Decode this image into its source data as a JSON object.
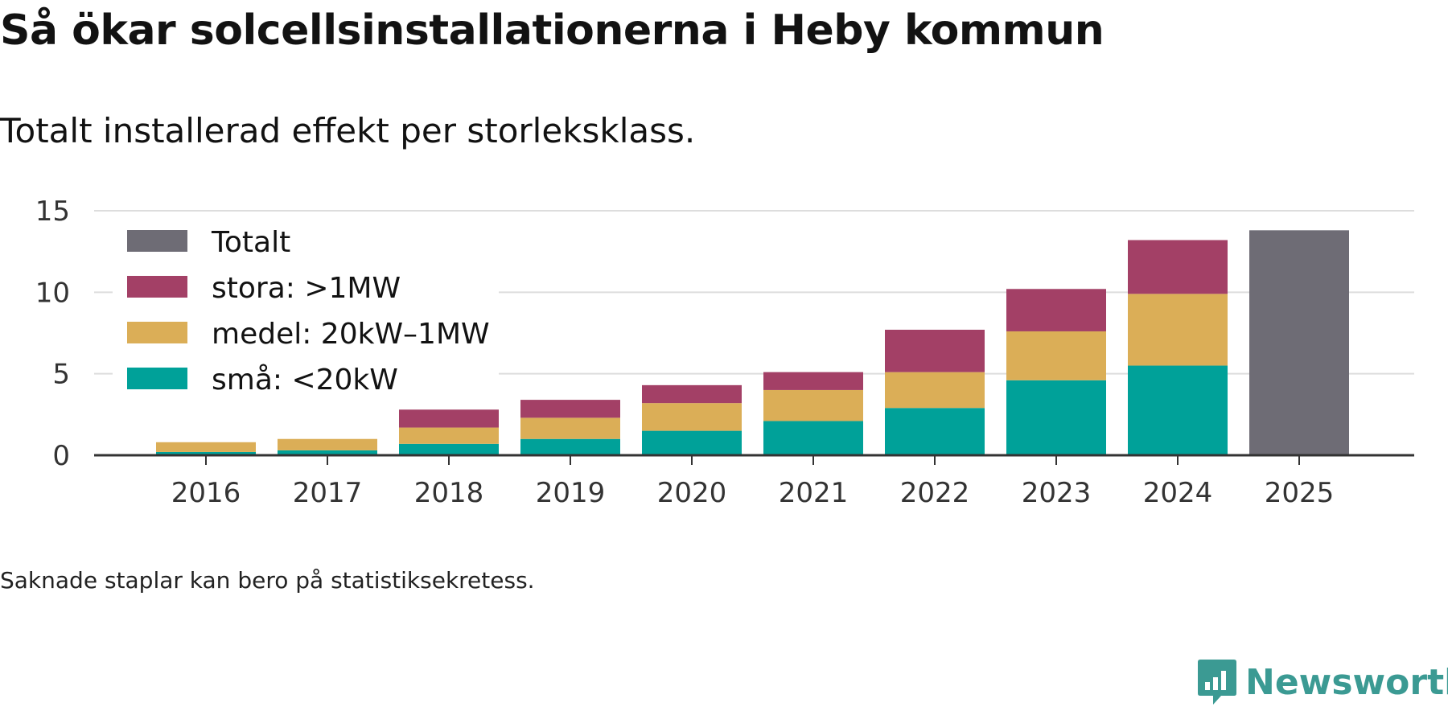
{
  "title": "Så ökar solcellsinstallationerna i Heby kommun",
  "subtitle": "Totalt installerad effekt per storleksklass.",
  "note": "Saknade staplar kan bero på statistiksekretess.",
  "brand": "Newsworthy",
  "colors": {
    "total": "#6e6c75",
    "stora": "#a34066",
    "medel": "#dbae57",
    "sma": "#00a199",
    "axis": "#333333",
    "grid": "#dddddd",
    "brand": "#3b9a93"
  },
  "chart_data": {
    "type": "bar",
    "stacked": true,
    "categories": [
      "2016",
      "2017",
      "2018",
      "2019",
      "2020",
      "2021",
      "2022",
      "2023",
      "2024",
      "2025"
    ],
    "series": [
      {
        "key": "sma",
        "name": "små: <20kW",
        "values": [
          0.2,
          0.3,
          0.7,
          1.0,
          1.5,
          2.1,
          2.9,
          4.6,
          5.5,
          null
        ]
      },
      {
        "key": "medel",
        "name": "medel: 20kW–1MW",
        "values": [
          0.6,
          0.7,
          1.0,
          1.3,
          1.7,
          1.9,
          2.2,
          3.0,
          4.4,
          null
        ]
      },
      {
        "key": "stora",
        "name": "stora: >1MW",
        "values": [
          null,
          null,
          1.1,
          1.1,
          1.1,
          1.1,
          2.6,
          2.6,
          3.3,
          null
        ]
      },
      {
        "key": "total",
        "name": "Totalt",
        "values": [
          null,
          null,
          null,
          null,
          null,
          null,
          null,
          null,
          null,
          13.8
        ]
      }
    ],
    "legend": [
      "Totalt",
      "stora: >1MW",
      "medel: 20kW–1MW",
      "små: <20kW"
    ],
    "yticks": [
      "0",
      "5",
      "10",
      "15"
    ],
    "ylim": [
      0,
      15
    ],
    "xlabel": "",
    "ylabel": "",
    "grid": true,
    "legend_position": "top-left"
  }
}
